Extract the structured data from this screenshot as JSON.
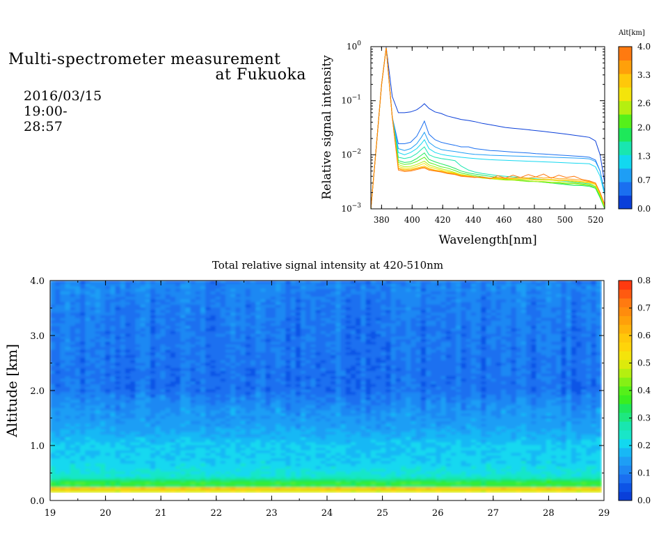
{
  "header": {
    "title_line1": "Multi-spectrometer measurement",
    "title_line2": "at Fukuoka",
    "subtitle": "2016/03/15 19:00-28:57"
  },
  "chart_data": [
    {
      "type": "line",
      "title": "",
      "xlabel": "Wavelength[nm]",
      "ylabel": "Relative signal intensity",
      "x_ticks": [
        "380",
        "400",
        "420",
        "440",
        "460",
        "480",
        "500",
        "520"
      ],
      "y_ticks": [
        "10^-3",
        "10^-2",
        "10^-1",
        "10^0"
      ],
      "xlim": [
        373,
        526
      ],
      "ylim": [
        0.001,
        1
      ],
      "y_scale": "log",
      "colorbar": {
        "title": "Alt[km]",
        "ticks": [
          "4.0",
          "3.3",
          "2.6",
          "2.0",
          "1.3",
          "0.7",
          "0.0"
        ],
        "range": [
          0.0,
          4.0
        ],
        "colors": [
          "#0a3fd9",
          "#1a6ff0",
          "#1e9ef5",
          "#12d8f0",
          "#19e6b0",
          "#1ee85a",
          "#55f01a",
          "#b5ef10",
          "#f4e40b",
          "#ffc80a",
          "#ffa00a",
          "#ff7a10"
        ]
      },
      "x": [
        373,
        377,
        380,
        383,
        387,
        391,
        395,
        399,
        403,
        406,
        408,
        411,
        415,
        419,
        423,
        428,
        432,
        437,
        441,
        446,
        451,
        456,
        461,
        466,
        471,
        476,
        481,
        486,
        491,
        496,
        501,
        506,
        511,
        516,
        520,
        523,
        526
      ],
      "series": [
        {
          "color": "#0a3fd9",
          "values": [
            0.001,
            0.02,
            0.2,
            0.98,
            0.12,
            0.06,
            0.06,
            0.062,
            0.068,
            0.078,
            0.088,
            0.072,
            0.062,
            0.058,
            0.052,
            0.048,
            0.045,
            0.043,
            0.041,
            0.038,
            0.036,
            0.034,
            0.032,
            0.031,
            0.03,
            0.029,
            0.028,
            0.027,
            0.026,
            0.025,
            0.024,
            0.023,
            0.022,
            0.021,
            0.018,
            0.01,
            0.003
          ]
        },
        {
          "color": "#1a6ff0",
          "values": [
            0.001,
            0.02,
            0.2,
            0.95,
            0.05,
            0.016,
            0.016,
            0.017,
            0.022,
            0.032,
            0.042,
            0.024,
            0.019,
            0.017,
            0.016,
            0.015,
            0.014,
            0.014,
            0.013,
            0.0125,
            0.012,
            0.0118,
            0.0115,
            0.0112,
            0.011,
            0.0108,
            0.0105,
            0.0103,
            0.0101,
            0.0099,
            0.0097,
            0.0095,
            0.0093,
            0.009,
            0.008,
            0.005,
            0.002
          ]
        },
        {
          "color": "#1e9ef5",
          "values": [
            0.001,
            0.02,
            0.2,
            0.95,
            0.05,
            0.013,
            0.012,
            0.013,
            0.016,
            0.021,
            0.026,
            0.017,
            0.014,
            0.0125,
            0.012,
            0.0115,
            0.011,
            0.0105,
            0.0102,
            0.01,
            0.0098,
            0.0097,
            0.0096,
            0.0095,
            0.0094,
            0.0093,
            0.0092,
            0.0091,
            0.009,
            0.0089,
            0.0088,
            0.0087,
            0.0086,
            0.0084,
            0.0075,
            0.005,
            0.002
          ]
        },
        {
          "color": "#12d8f0",
          "values": [
            0.001,
            0.02,
            0.2,
            0.95,
            0.05,
            0.011,
            0.01,
            0.011,
            0.013,
            0.016,
            0.019,
            0.013,
            0.011,
            0.0102,
            0.0097,
            0.0093,
            0.009,
            0.0087,
            0.0085,
            0.0083,
            0.0081,
            0.008,
            0.0079,
            0.0078,
            0.0077,
            0.0076,
            0.0075,
            0.0074,
            0.0073,
            0.0072,
            0.0071,
            0.007,
            0.0069,
            0.0068,
            0.006,
            0.004,
            0.0018
          ]
        },
        {
          "color": "#19e6b0",
          "values": [
            0.001,
            0.02,
            0.2,
            0.95,
            0.05,
            0.009,
            0.0085,
            0.009,
            0.0105,
            0.0125,
            0.014,
            0.01,
            0.009,
            0.0085,
            0.0082,
            0.0078,
            0.0062,
            0.0052,
            0.0048,
            0.0045,
            0.0043,
            0.0041,
            0.004,
            0.0039,
            0.0038,
            0.0037,
            0.0036,
            0.0035,
            0.0034,
            0.0033,
            0.0032,
            0.0031,
            0.003,
            0.0029,
            0.0026,
            0.0018,
            0.0011
          ]
        },
        {
          "color": "#1ee85a",
          "values": [
            0.001,
            0.02,
            0.2,
            0.95,
            0.05,
            0.0078,
            0.0072,
            0.0074,
            0.0085,
            0.0098,
            0.0108,
            0.0082,
            0.0074,
            0.0068,
            0.0063,
            0.0056,
            0.005,
            0.0046,
            0.0044,
            0.0042,
            0.004,
            0.0038,
            0.0036,
            0.0035,
            0.0034,
            0.0033,
            0.0032,
            0.0031,
            0.003,
            0.0029,
            0.0028,
            0.0027,
            0.0027,
            0.0026,
            0.0024,
            0.0016,
            0.001
          ]
        },
        {
          "color": "#55f01a",
          "values": [
            0.001,
            0.02,
            0.2,
            0.95,
            0.05,
            0.0072,
            0.0066,
            0.0068,
            0.0075,
            0.0084,
            0.009,
            0.0072,
            0.0066,
            0.006,
            0.0057,
            0.0051,
            0.0046,
            0.0043,
            0.0041,
            0.0039,
            0.0037,
            0.0036,
            0.0035,
            0.0034,
            0.0033,
            0.0032,
            0.0032,
            0.0031,
            0.003,
            0.003,
            0.0029,
            0.0029,
            0.0028,
            0.0027,
            0.0025,
            0.0017,
            0.001
          ]
        },
        {
          "color": "#b5ef10",
          "values": [
            0.001,
            0.02,
            0.2,
            0.95,
            0.05,
            0.0066,
            0.006,
            0.0061,
            0.0066,
            0.0072,
            0.0076,
            0.0065,
            0.006,
            0.0055,
            0.0052,
            0.0047,
            0.0043,
            0.0041,
            0.0039,
            0.0037,
            0.0036,
            0.0035,
            0.0034,
            0.0034,
            0.0033,
            0.0033,
            0.0032,
            0.0032,
            0.0031,
            0.0031,
            0.003,
            0.003,
            0.0029,
            0.0028,
            0.0026,
            0.0018,
            0.0011
          ]
        },
        {
          "color": "#f4e40b",
          "values": [
            0.001,
            0.02,
            0.2,
            0.95,
            0.05,
            0.0061,
            0.0056,
            0.0057,
            0.0061,
            0.0066,
            0.0069,
            0.006,
            0.0056,
            0.0052,
            0.0049,
            0.0046,
            0.0042,
            0.0041,
            0.0039,
            0.0038,
            0.0037,
            0.0036,
            0.0036,
            0.0035,
            0.0035,
            0.0035,
            0.0034,
            0.0034,
            0.0034,
            0.0033,
            0.0033,
            0.0032,
            0.0031,
            0.003,
            0.0028,
            0.0019,
            0.0011
          ]
        },
        {
          "color": "#ffc80a",
          "values": [
            0.001,
            0.02,
            0.2,
            0.95,
            0.05,
            0.0057,
            0.0053,
            0.0054,
            0.0057,
            0.006,
            0.0062,
            0.0056,
            0.0052,
            0.005,
            0.0047,
            0.0045,
            0.0042,
            0.004,
            0.0039,
            0.0038,
            0.0037,
            0.0037,
            0.0036,
            0.0036,
            0.0036,
            0.0036,
            0.0035,
            0.0035,
            0.0035,
            0.0034,
            0.0034,
            0.0033,
            0.0032,
            0.0031,
            0.0029,
            0.002,
            0.0012
          ]
        },
        {
          "color": "#ffa00a",
          "values": [
            0.001,
            0.02,
            0.2,
            0.95,
            0.05,
            0.0055,
            0.0051,
            0.0052,
            0.0055,
            0.0058,
            0.0059,
            0.0054,
            0.0051,
            0.0049,
            0.0046,
            0.0044,
            0.0041,
            0.004,
            0.0039,
            0.0038,
            0.0037,
            0.0038,
            0.0037,
            0.0037,
            0.0038,
            0.0037,
            0.0039,
            0.0037,
            0.0038,
            0.0036,
            0.0036,
            0.0035,
            0.0034,
            0.0032,
            0.003,
            0.002,
            0.0012
          ]
        },
        {
          "color": "#ff7a10",
          "values": [
            0.001,
            0.02,
            0.2,
            0.95,
            0.05,
            0.0052,
            0.0049,
            0.005,
            0.0053,
            0.0056,
            0.0057,
            0.0052,
            0.005,
            0.0048,
            0.0045,
            0.0043,
            0.004,
            0.0039,
            0.0038,
            0.0039,
            0.0036,
            0.0041,
            0.0037,
            0.0042,
            0.0038,
            0.0043,
            0.0039,
            0.0044,
            0.0037,
            0.0042,
            0.0038,
            0.004,
            0.0035,
            0.0033,
            0.003,
            0.002,
            0.0012
          ]
        }
      ]
    },
    {
      "type": "heatmap",
      "title": "Total relative signal intensity at 420-510nm",
      "xlabel": "",
      "ylabel": "Altitude [km]",
      "x_ticks": [
        "19",
        "20",
        "21",
        "22",
        "23",
        "24",
        "25",
        "26",
        "27",
        "28",
        "29"
      ],
      "y_ticks": [
        "0.0",
        "1.0",
        "2.0",
        "3.0",
        "4.0"
      ],
      "xlim": [
        19,
        29
      ],
      "ylim": [
        0,
        4
      ],
      "data_xrange": [
        19,
        28.95
      ],
      "data_yrange": [
        0.15,
        4.0
      ],
      "colorbar": {
        "ticks": [
          "0.8",
          "0.7",
          "0.6",
          "0.5",
          "0.4",
          "0.3",
          "0.2",
          "0.1",
          "0.0"
        ],
        "range": [
          0.0,
          0.8
        ],
        "colors": [
          "#0a3fd9",
          "#0d54e6",
          "#1a6ff0",
          "#1e88f3",
          "#1e9ef5",
          "#18b8f5",
          "#12d8f0",
          "#19e6c8",
          "#19e6b0",
          "#1ee880",
          "#1ee85a",
          "#3aee20",
          "#55f01a",
          "#85f015",
          "#b5ef10",
          "#dcea0c",
          "#f4e40b",
          "#ffd40a",
          "#ffc80a",
          "#ffb40a",
          "#ffa00a",
          "#ff8c0d",
          "#ff7a10",
          "#ff5a10",
          "#ff3a10"
        ]
      },
      "profile": {
        "altitude_km": [
          0.15,
          0.2,
          0.25,
          0.3,
          0.35,
          0.4,
          0.5,
          0.7,
          1.0,
          1.2,
          1.4,
          1.6,
          1.8,
          2.0,
          2.5,
          3.0,
          3.5,
          3.9,
          4.0
        ],
        "intensity": [
          0.5,
          0.6,
          0.3,
          0.38,
          0.32,
          0.24,
          0.22,
          0.2,
          0.19,
          0.16,
          0.14,
          0.13,
          0.11,
          0.08,
          0.085,
          0.09,
          0.095,
          0.11,
          0.07
        ]
      }
    }
  ]
}
